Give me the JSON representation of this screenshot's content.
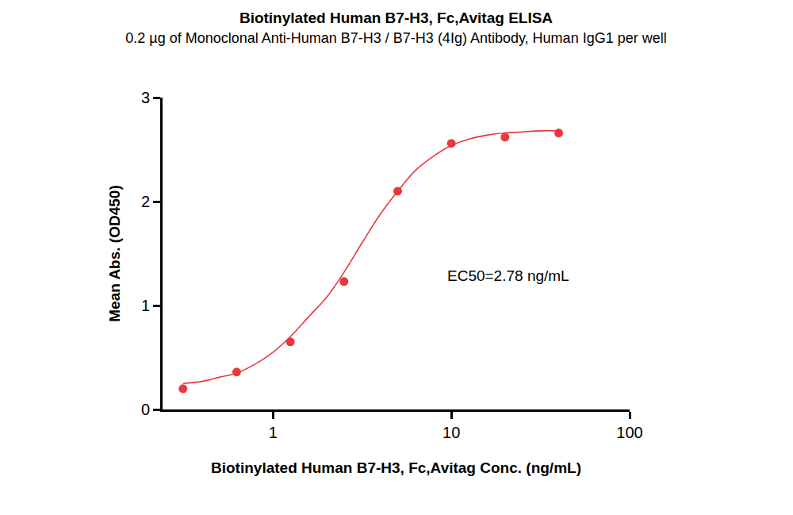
{
  "chart_data": {
    "type": "scatter",
    "title": "Biotinylated Human B7-H3, Fc,Avitag ELISA",
    "subtitle": "0.2 µg of Monoclonal Anti-Human B7-H3 / B7-H3 (4Ig) Antibody, Human IgG1 per well",
    "x_label": "Biotinylated Human B7-H3, Fc,Avitag Conc. (ng/mL)",
    "y_label": "Mean Abs. (OD450)",
    "annotations": [
      "EC50=2.78 ng/mL"
    ],
    "log": "x",
    "grid": false,
    "xlim": [
      0.24,
      100
    ],
    "xticks": [
      1,
      10,
      100
    ],
    "ylim": [
      0,
      3
    ],
    "yticks": [
      0,
      1,
      2,
      3
    ],
    "series": [
      {
        "type": "scatter",
        "marker": "circle",
        "color": "#e8383d",
        "x": [
          0.3125,
          0.625,
          1.25,
          2.5,
          5,
          10,
          20,
          40
        ],
        "values": [
          0.2,
          0.36,
          0.65,
          1.23,
          2.1,
          2.56,
          2.62,
          2.66
        ]
      },
      {
        "type": "line",
        "line_style": "solid",
        "color": "#e8383d",
        "x": [
          0.3125,
          0.4,
          0.5,
          0.625,
          0.8,
          1,
          1.25,
          1.6,
          2,
          2.5,
          3.2,
          4,
          5,
          6.3,
          8,
          10,
          12.5,
          16,
          20,
          25,
          32,
          40
        ],
        "values": [
          0.25,
          0.27,
          0.31,
          0.35,
          0.44,
          0.55,
          0.7,
          0.9,
          1.08,
          1.32,
          1.62,
          1.88,
          2.1,
          2.3,
          2.44,
          2.54,
          2.6,
          2.64,
          2.66,
          2.67,
          2.68,
          2.68
        ]
      }
    ]
  }
}
